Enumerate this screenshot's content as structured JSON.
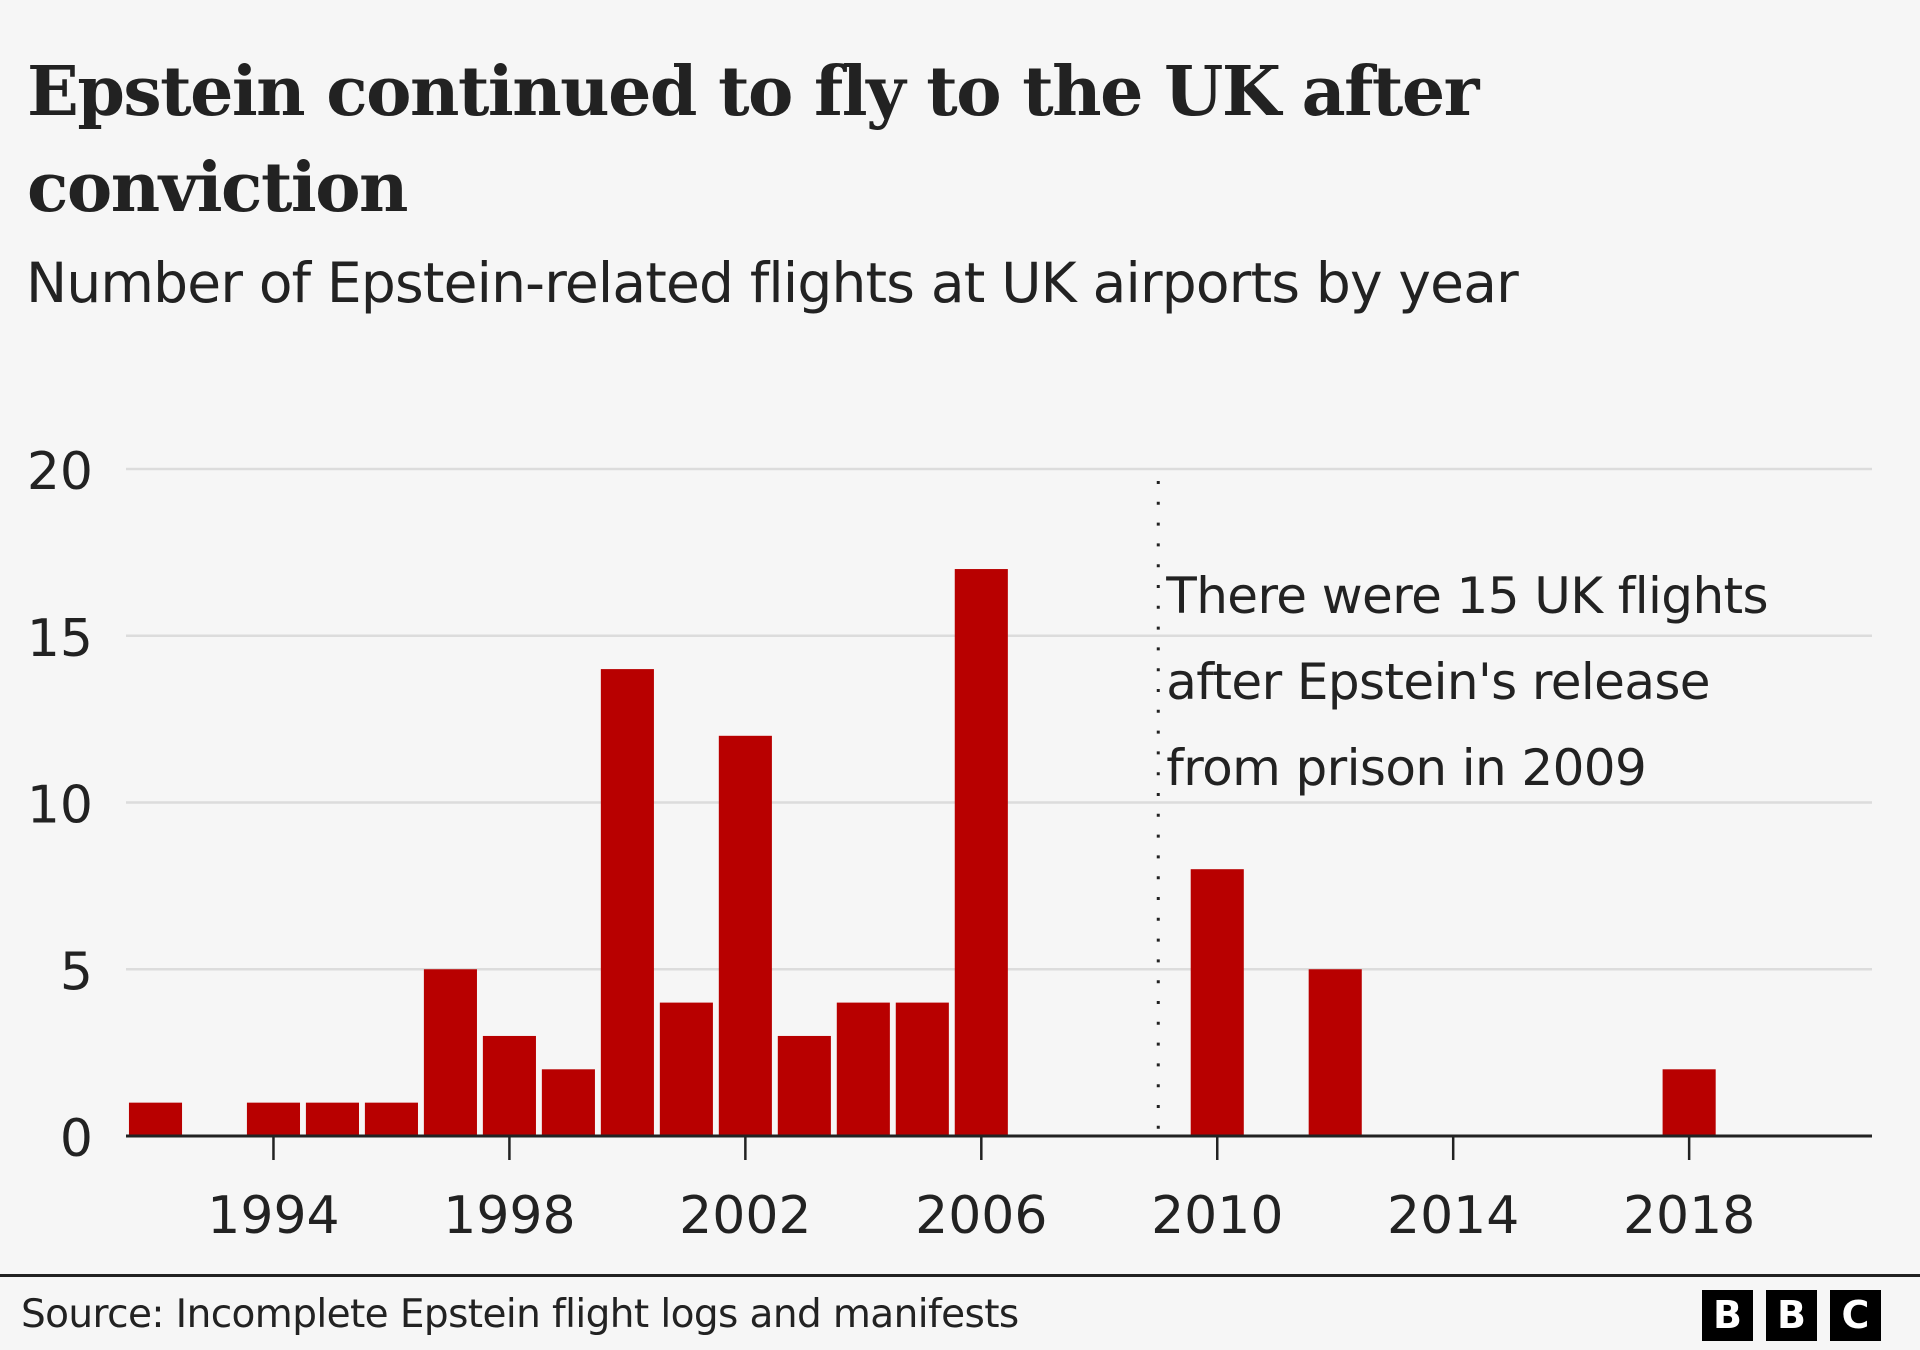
{
  "header": {
    "title": "Epstein continued to fly to the UK after conviction",
    "subtitle": "Number of Epstein-related flights at UK airports by year"
  },
  "colors": {
    "background": "#f6f6f6",
    "bar": "#b80000",
    "text": "#222222",
    "grid": "#dcdcdc",
    "axis": "#222222"
  },
  "chart_data": {
    "type": "bar",
    "title": "Epstein continued to fly to the UK after conviction",
    "subtitle": "Number of Epstein-related flights at UK airports by year",
    "xlabel": "",
    "ylabel": "",
    "x": [
      1992,
      1993,
      1994,
      1995,
      1996,
      1997,
      1998,
      1999,
      2000,
      2001,
      2002,
      2003,
      2004,
      2005,
      2006,
      2007,
      2008,
      2009,
      2010,
      2011,
      2012,
      2013,
      2014,
      2015,
      2016,
      2017,
      2018,
      2019,
      2020
    ],
    "values": [
      1,
      0,
      1,
      1,
      1,
      5,
      3,
      2,
      14,
      4,
      12,
      3,
      4,
      4,
      17,
      0,
      0,
      0,
      8,
      0,
      5,
      0,
      0,
      0,
      0,
      0,
      2,
      0,
      0
    ],
    "ylim": [
      0,
      20
    ],
    "xlim": [
      1991.5,
      2021.1
    ],
    "yticks": [
      0,
      5,
      10,
      15,
      20
    ],
    "ytick_labels": [
      "0",
      "5",
      "10",
      "15",
      "20"
    ],
    "xticks": [
      1994,
      1998,
      2002,
      2006,
      2010,
      2014,
      2018
    ],
    "xtick_labels": [
      "1994",
      "1998",
      "2002",
      "2006",
      "2010",
      "2014",
      "2018"
    ],
    "grid": true,
    "legend": null,
    "reference_line": {
      "x": 2009,
      "style": "dotted"
    },
    "annotation": {
      "anchor_x": 2009,
      "lines": [
        "There were 15 UK flights",
        "after Epstein's release",
        "from prison in 2009"
      ]
    }
  },
  "footer": {
    "source": "Source: Incomplete Epstein flight logs and manifests",
    "logo_letters": [
      "B",
      "B",
      "C"
    ]
  }
}
